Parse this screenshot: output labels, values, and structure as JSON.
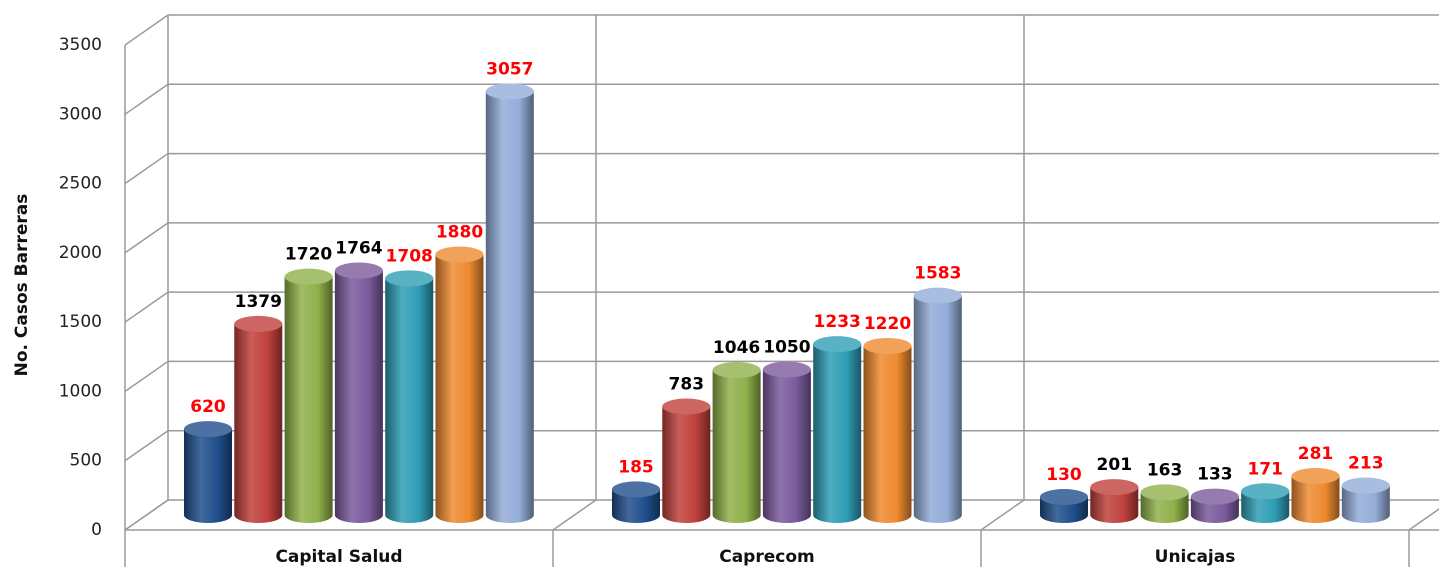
{
  "chart_data": {
    "type": "bar3d",
    "y_label": "No. Casos Barreras",
    "categories": [
      "Capital Salud",
      "Caprecom",
      "Unicajas"
    ],
    "series": [
      {
        "color": "#1f4e8c",
        "label_color": "#ff0000",
        "values": [
          620,
          185,
          130
        ]
      },
      {
        "color": "#c0403c",
        "label_color": "#000000",
        "values": [
          1379,
          783,
          201
        ]
      },
      {
        "color": "#8fb04a",
        "label_color": "#000000",
        "values": [
          1720,
          1046,
          163
        ]
      },
      {
        "color": "#7a5a9c",
        "label_color": "#000000",
        "values": [
          1764,
          1050,
          133
        ]
      },
      {
        "color": "#2f9db5",
        "label_color": "#ff0000",
        "values": [
          1708,
          1233,
          171
        ]
      },
      {
        "color": "#ef8a30",
        "label_color": "#ff0000",
        "values": [
          1880,
          1220,
          281
        ]
      },
      {
        "color": "#93acd8",
        "label_color": "#ff0000",
        "values": [
          3057,
          1583,
          213
        ]
      }
    ],
    "ylim": [
      0,
      3500
    ],
    "yticks": [
      0,
      500,
      1000,
      1500,
      2000,
      2500,
      3000,
      3500
    ],
    "grid": true
  }
}
